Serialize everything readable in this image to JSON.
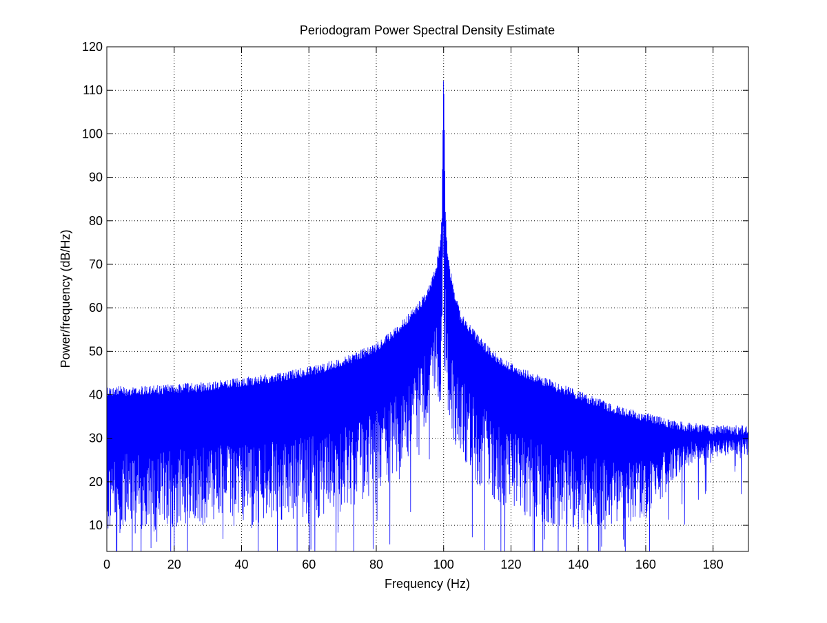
{
  "chart_data": {
    "type": "line",
    "title": "Periodogram Power Spectral Density Estimate",
    "xlabel": "Frequency (Hz)",
    "ylabel": "Power/frequency (dB/Hz)",
    "xlim": [
      0,
      190.5
    ],
    "ylim": [
      4,
      120
    ],
    "xticks": [
      0,
      20,
      40,
      60,
      80,
      100,
      120,
      140,
      160,
      180
    ],
    "yticks": [
      10,
      20,
      30,
      40,
      50,
      60,
      70,
      80,
      90,
      100,
      110,
      120
    ],
    "grid": true,
    "legend": "none",
    "line_color": "#0000ff",
    "series": [
      {
        "peak_frequency": 100,
        "peak_value": 117,
        "upper_envelope": {
          "x": [
            0,
            10,
            20,
            30,
            40,
            50,
            60,
            70,
            80,
            85,
            90,
            95,
            97,
            98,
            99,
            99.5,
            100,
            100.5,
            101,
            102,
            103,
            105,
            110,
            115,
            120,
            130,
            140,
            150,
            160,
            170,
            175,
            180,
            185,
            190.5
          ],
          "y": [
            42,
            42,
            42.5,
            43,
            44,
            45,
            46.5,
            48.5,
            52,
            55,
            59,
            64,
            68,
            71,
            76,
            82,
            117,
            84,
            75,
            69,
            65,
            59,
            54,
            50,
            47.5,
            44,
            41,
            38,
            36,
            34,
            33.5,
            33,
            33,
            33
          ]
        },
        "lower_envelope": {
          "x": [
            0,
            10,
            20,
            30,
            40,
            50,
            60,
            70,
            80,
            85,
            90,
            95,
            97,
            98,
            99,
            100,
            101,
            102,
            105,
            110,
            120,
            130,
            140,
            150,
            160,
            170,
            175,
            180,
            185,
            190.5
          ],
          "y": [
            7,
            8,
            9,
            10,
            10,
            10,
            11,
            13,
            17,
            20,
            25,
            32,
            37,
            40,
            37,
            49,
            38,
            33,
            26,
            19,
            13,
            10,
            9,
            9,
            11,
            22,
            25,
            25.5,
            26,
            26
          ]
        }
      }
    ]
  }
}
